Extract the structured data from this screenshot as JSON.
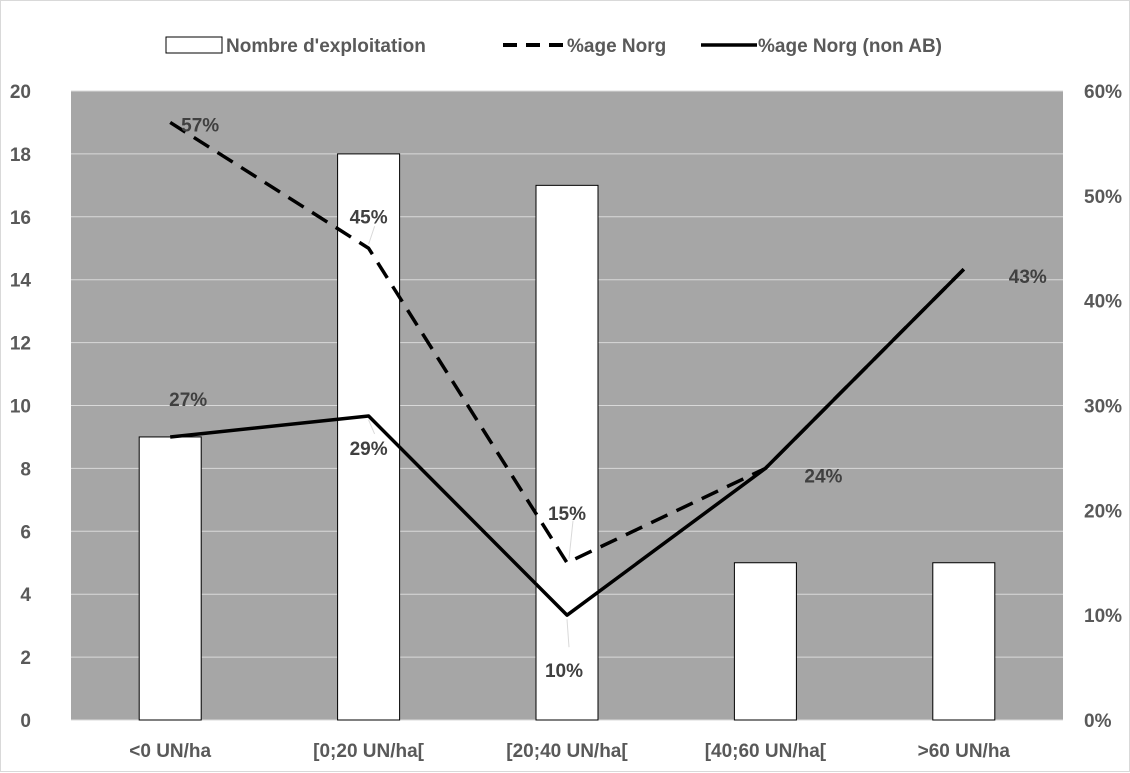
{
  "chart_data": {
    "type": "bar",
    "title": "",
    "xlabel": "",
    "ylabel": "",
    "categories": [
      "<0 UN/ha",
      "[0;20 UN/ha[",
      "[20;40 UN/ha[",
      "[40;60 UN/ha[",
      ">60 UN/ha"
    ],
    "ylim": [
      0,
      20
    ],
    "y2lim": [
      0,
      0.6
    ],
    "yticks": [
      0,
      2,
      4,
      6,
      8,
      10,
      12,
      14,
      16,
      18,
      20
    ],
    "y2ticks": [
      "0%",
      "10%",
      "20%",
      "30%",
      "40%",
      "50%",
      "60%"
    ],
    "grid": true,
    "legend_position": "top",
    "plot_background": "#a6a6a6",
    "series": [
      {
        "name": "Nombre d'exploitation",
        "type": "bar",
        "axis": "left",
        "values": [
          9,
          18,
          17,
          5,
          5
        ],
        "color": "#ffffff"
      },
      {
        "name": "%age Norg",
        "type": "line",
        "style": "dashed",
        "axis": "right",
        "values": [
          0.57,
          0.45,
          0.15,
          0.24,
          0.43
        ],
        "labels": [
          "57%",
          "45%",
          "15%",
          "",
          ""
        ],
        "color": "#000000"
      },
      {
        "name": "%age Norg (non AB)",
        "type": "line",
        "style": "solid",
        "axis": "right",
        "values": [
          0.27,
          0.29,
          0.1,
          0.24,
          0.43
        ],
        "labels": [
          "27%",
          "29%",
          "10%",
          "24%",
          "43%"
        ],
        "color": "#000000"
      }
    ]
  }
}
